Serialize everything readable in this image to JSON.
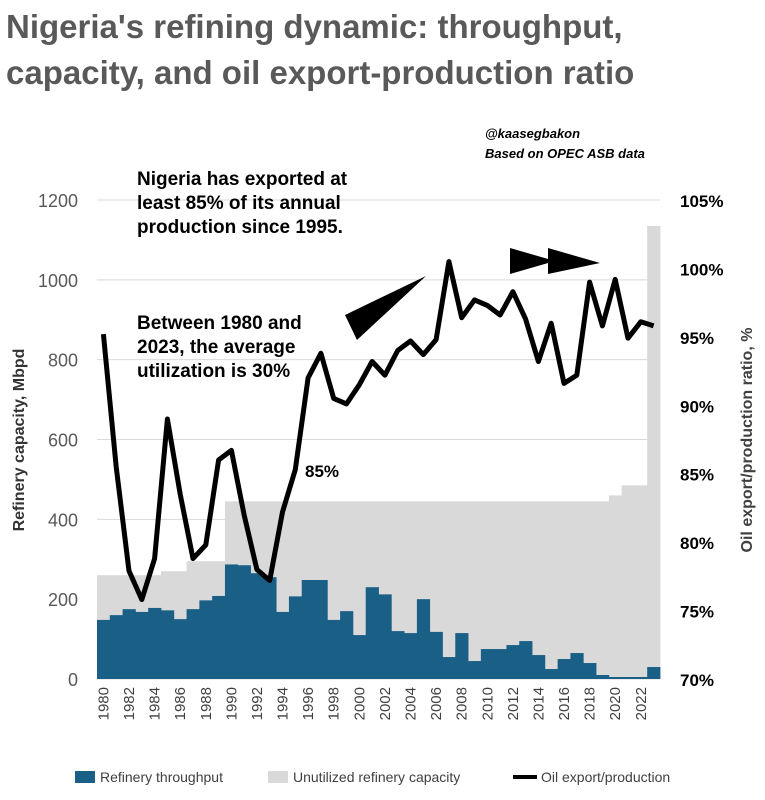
{
  "title": "Nigeria's refining dynamic: throughput, capacity, and oil export-production ratio",
  "credit": {
    "handle": "@kaasegbakon",
    "source": "Based on OPEC ASB data"
  },
  "annotations": {
    "exports": "Nigeria has exported at least 85% of its annual production since 1995.",
    "utilization": "Between 1980 and 2023, the average utilization is 30%",
    "label_85": "85%"
  },
  "chart_data": {
    "type": "bar",
    "x": [
      1980,
      1981,
      1982,
      1983,
      1984,
      1985,
      1986,
      1987,
      1988,
      1989,
      1990,
      1991,
      1992,
      1993,
      1994,
      1995,
      1996,
      1997,
      1998,
      1999,
      2000,
      2001,
      2002,
      2003,
      2004,
      2005,
      2006,
      2007,
      2008,
      2009,
      2010,
      2011,
      2012,
      2013,
      2014,
      2015,
      2016,
      2017,
      2018,
      2019,
      2020,
      2021,
      2022,
      2023
    ],
    "x_tick_labels": [
      "1980",
      "1982",
      "1984",
      "1986",
      "1988",
      "1990",
      "1992",
      "1994",
      "1996",
      "1998",
      "2000",
      "2002",
      "2004",
      "2006",
      "2008",
      "2010",
      "2012",
      "2014",
      "2016",
      "2018",
      "2020",
      "2022"
    ],
    "series": [
      {
        "name": "Refinery throughput",
        "axis": "left",
        "color": "#1a5f86",
        "values": [
          148,
          160,
          175,
          168,
          178,
          172,
          150,
          175,
          197,
          208,
          287,
          285,
          265,
          255,
          168,
          207,
          248,
          248,
          148,
          170,
          110,
          230,
          212,
          120,
          115,
          200,
          118,
          55,
          115,
          45,
          75,
          75,
          85,
          95,
          60,
          25,
          50,
          65,
          40,
          10,
          5,
          5,
          5,
          30
        ]
      },
      {
        "name": "Unutilized refinery capacity",
        "axis": "left",
        "color": "#d9d9d9",
        "capacity": [
          260,
          260,
          260,
          260,
          260,
          270,
          270,
          295,
          295,
          295,
          445,
          445,
          445,
          445,
          445,
          445,
          445,
          445,
          445,
          445,
          445,
          445,
          445,
          445,
          445,
          445,
          445,
          445,
          445,
          445,
          445,
          445,
          445,
          445,
          445,
          445,
          445,
          445,
          445,
          445,
          460,
          485,
          485,
          1135
        ]
      },
      {
        "name": "Oil export/production",
        "axis": "right",
        "color": "#000000",
        "values": [
          95.2,
          85.5,
          77.9,
          75.8,
          78.8,
          89.0,
          83.5,
          78.8,
          79.8,
          86.0,
          86.7,
          82.0,
          78.0,
          77.2,
          82.2,
          85.3,
          92.0,
          93.8,
          90.5,
          90.1,
          91.5,
          93.2,
          92.2,
          94.0,
          94.7,
          93.7,
          94.8,
          100.5,
          96.4,
          97.7,
          97.3,
          96.6,
          98.3,
          96.3,
          93.2,
          96.0,
          91.6,
          92.2,
          99.0,
          95.8,
          99.2,
          94.9,
          96.1,
          95.8
        ]
      }
    ],
    "ylabel": "Refinery capacity, Mbpd",
    "ylim": [
      0,
      1200
    ],
    "y_ticks": [
      "0",
      "200",
      "400",
      "600",
      "800",
      "1000",
      "1200"
    ],
    "y2label": "Oil export/production ratio, %",
    "y2lim": [
      70,
      105
    ],
    "y2_ticks": [
      "70%",
      "75%",
      "80%",
      "85%",
      "90%",
      "95%",
      "100%",
      "105%"
    ],
    "legend": [
      "Refinery throughput",
      "Unutilized refinery capacity",
      "Oil export/production"
    ],
    "legend_position": "bottom"
  }
}
